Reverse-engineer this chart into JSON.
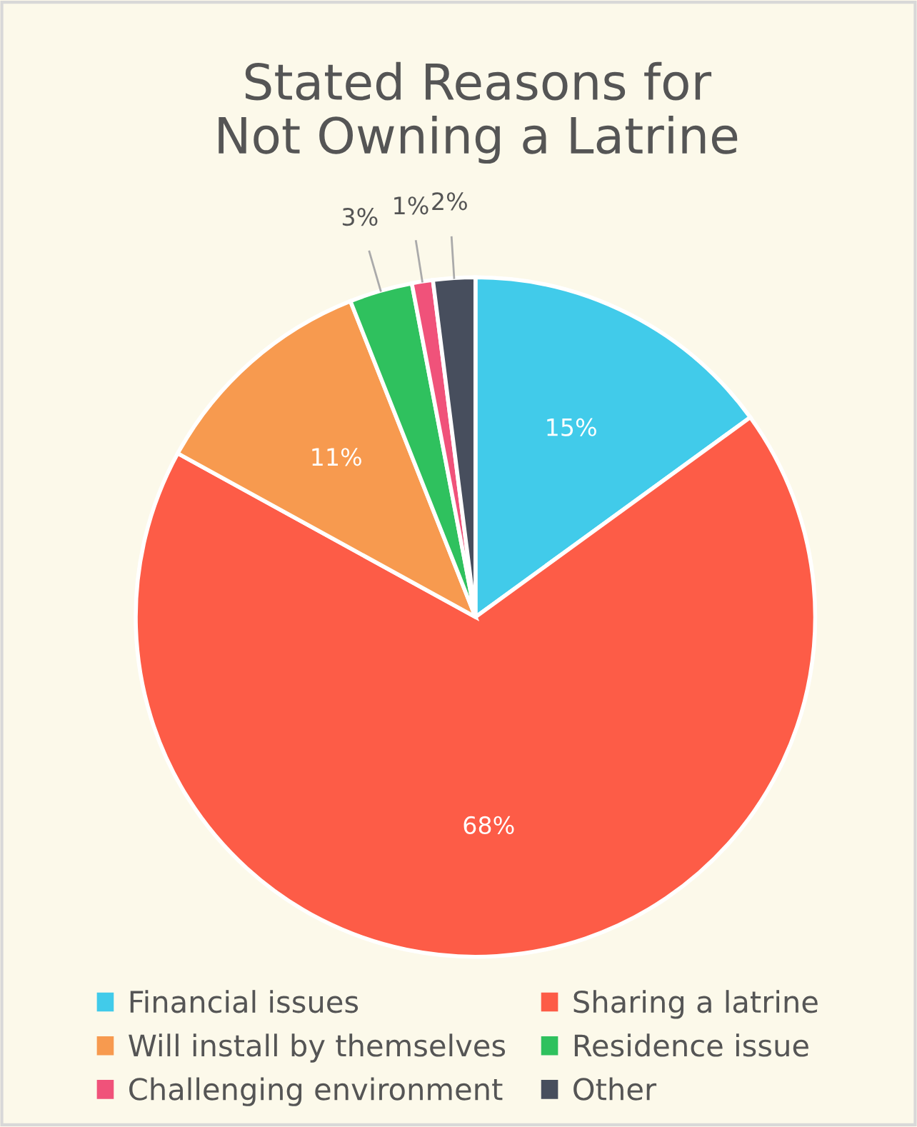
{
  "chart_data": {
    "type": "pie",
    "title": "Stated Reasons for\nNot Owning a Latrine",
    "categories": [
      "Financial issues",
      "Sharing a latrine",
      "Will install by themselves",
      "Residence issue",
      "Challenging environment",
      "Other"
    ],
    "values": [
      15,
      68,
      11,
      3,
      1,
      2
    ],
    "value_labels": [
      "15%",
      "68%",
      "11%",
      "3%",
      "1%",
      "2%"
    ],
    "colors": [
      "#41cbea",
      "#fd5c47",
      "#f79a4f",
      "#2fc15e",
      "#f0527a",
      "#474e5d"
    ],
    "legend": "bottom"
  }
}
